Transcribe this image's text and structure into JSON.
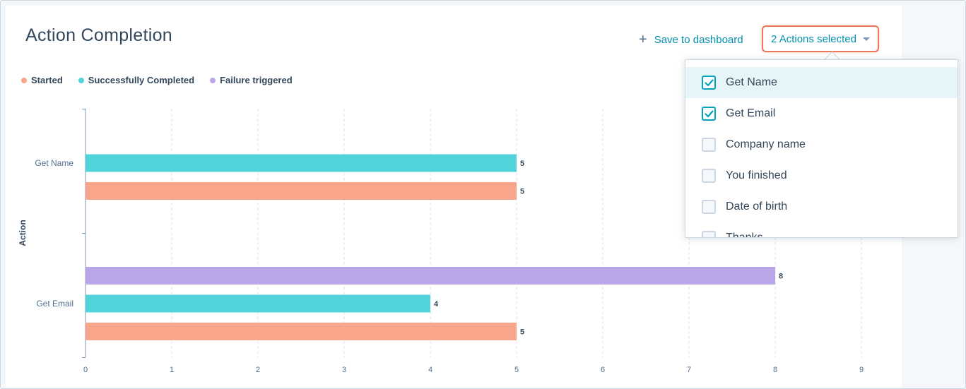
{
  "header": {
    "title": "Action Completion",
    "save_label": "Save to dashboard",
    "actions_selected_label": "2 Actions selected"
  },
  "legend": [
    {
      "label": "Started",
      "color": "#f8a58b"
    },
    {
      "label": "Successfully Completed",
      "color": "#51d3d9"
    },
    {
      "label": "Failure triggered",
      "color": "#b9a6e9"
    }
  ],
  "dropdown": {
    "options": [
      {
        "label": "Get Name",
        "checked": true,
        "hover": true
      },
      {
        "label": "Get Email",
        "checked": true,
        "hover": false
      },
      {
        "label": "Company name",
        "checked": false,
        "hover": false
      },
      {
        "label": "You finished",
        "checked": false,
        "hover": false
      },
      {
        "label": "Date of birth",
        "checked": false,
        "hover": false
      },
      {
        "label": "Thanks",
        "checked": false,
        "hover": false
      }
    ]
  },
  "chart_data": {
    "type": "bar",
    "orientation": "horizontal",
    "ylabel": "Action",
    "xlabel": "",
    "categories": [
      "Get Name",
      "Get Email"
    ],
    "series": [
      {
        "name": "Failure triggered",
        "color": "#b9a6e9",
        "values": [
          null,
          8
        ]
      },
      {
        "name": "Successfully Completed",
        "color": "#51d3d9",
        "values": [
          5,
          4
        ]
      },
      {
        "name": "Started",
        "color": "#f8a58b",
        "values": [
          5,
          5
        ]
      }
    ],
    "xlim": [
      0,
      9
    ],
    "xticks": [
      0,
      1,
      2,
      3,
      4,
      5,
      6,
      7,
      8,
      9
    ],
    "grid": true,
    "data_labels": true,
    "legend_position": "top-left"
  }
}
